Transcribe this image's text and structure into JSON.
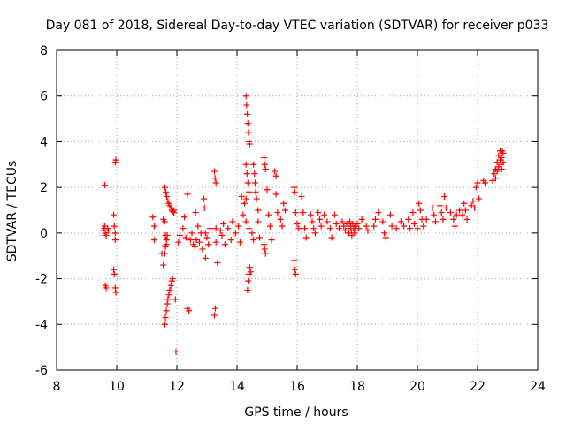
{
  "chart_data": {
    "type": "scatter",
    "title": "Day 081 of 2018, Sidereal Day-to-day VTEC variation (SDTVAR) for receiver p033",
    "xlabel": "GPS time / hours",
    "ylabel": "SDTVAR / TECUs",
    "xlim": [
      8,
      24
    ],
    "ylim": [
      -6,
      8
    ],
    "xticks": [
      8,
      10,
      12,
      14,
      16,
      18,
      20,
      22,
      24
    ],
    "yticks": [
      -6,
      -4,
      -2,
      0,
      2,
      4,
      6,
      8
    ],
    "grid": true,
    "marker": "plus",
    "color": "#ff0000",
    "points": [
      [
        9.55,
        0.1
      ],
      [
        9.58,
        0.2
      ],
      [
        9.6,
        0.3
      ],
      [
        9.62,
        0.0
      ],
      [
        9.65,
        -0.1
      ],
      [
        9.6,
        2.1
      ],
      [
        9.62,
        -2.3
      ],
      [
        9.65,
        -2.4
      ],
      [
        9.7,
        0.2
      ],
      [
        9.72,
        0.1
      ],
      [
        9.9,
        0.8
      ],
      [
        9.92,
        0.3
      ],
      [
        9.95,
        0.0
      ],
      [
        9.95,
        -0.3
      ],
      [
        9.95,
        3.1
      ],
      [
        9.97,
        3.2
      ],
      [
        9.9,
        -1.6
      ],
      [
        9.92,
        -1.8
      ],
      [
        9.95,
        -2.4
      ],
      [
        9.97,
        -2.6
      ],
      [
        11.2,
        0.7
      ],
      [
        11.25,
        0.3
      ],
      [
        11.25,
        -0.3
      ],
      [
        11.55,
        0.6
      ],
      [
        11.6,
        0.5
      ],
      [
        11.62,
        -0.1
      ],
      [
        11.65,
        -0.5
      ],
      [
        11.5,
        -0.9
      ],
      [
        11.55,
        -1.4
      ],
      [
        11.6,
        -0.9
      ],
      [
        11.62,
        -0.6
      ],
      [
        11.65,
        -0.3
      ],
      [
        11.68,
        -0.1
      ],
      [
        11.6,
        2.0
      ],
      [
        11.63,
        1.8
      ],
      [
        11.66,
        1.6
      ],
      [
        11.7,
        1.4
      ],
      [
        11.73,
        1.3
      ],
      [
        11.76,
        1.2
      ],
      [
        11.8,
        1.1
      ],
      [
        11.83,
        1.0
      ],
      [
        11.86,
        0.95
      ],
      [
        11.9,
        0.9
      ],
      [
        11.6,
        -4.0
      ],
      [
        11.62,
        -3.7
      ],
      [
        11.65,
        -3.4
      ],
      [
        11.68,
        -3.1
      ],
      [
        11.7,
        -2.9
      ],
      [
        11.73,
        -2.7
      ],
      [
        11.76,
        -2.5
      ],
      [
        11.8,
        -2.3
      ],
      [
        11.83,
        -2.1
      ],
      [
        11.86,
        -2.0
      ],
      [
        11.95,
        -2.9
      ],
      [
        11.97,
        -5.2
      ],
      [
        11.9,
        1.0
      ],
      [
        12.05,
        -0.4
      ],
      [
        12.1,
        -0.1
      ],
      [
        12.2,
        0.2
      ],
      [
        12.25,
        0.7
      ],
      [
        12.3,
        -0.2
      ],
      [
        12.35,
        1.7
      ],
      [
        12.35,
        -3.3
      ],
      [
        12.4,
        -3.4
      ],
      [
        12.45,
        -0.3
      ],
      [
        12.5,
        0.0
      ],
      [
        12.55,
        -0.5
      ],
      [
        12.6,
        -0.6
      ],
      [
        12.62,
        0.9
      ],
      [
        12.65,
        -0.3
      ],
      [
        12.7,
        0.3
      ],
      [
        12.75,
        -0.4
      ],
      [
        12.8,
        0.0
      ],
      [
        12.85,
        -0.7
      ],
      [
        12.9,
        1.5
      ],
      [
        12.92,
        1.1
      ],
      [
        12.95,
        0.0
      ],
      [
        12.95,
        -1.1
      ],
      [
        13.0,
        -0.2
      ],
      [
        13.05,
        -0.5
      ],
      [
        13.1,
        0.2
      ],
      [
        13.25,
        2.7
      ],
      [
        13.27,
        2.4
      ],
      [
        13.3,
        2.2
      ],
      [
        13.25,
        -3.6
      ],
      [
        13.28,
        -3.3
      ],
      [
        13.3,
        0.2
      ],
      [
        13.35,
        -1.3
      ],
      [
        13.3,
        -0.4
      ],
      [
        13.45,
        0.1
      ],
      [
        13.5,
        -0.1
      ],
      [
        13.55,
        0.4
      ],
      [
        13.6,
        -0.5
      ],
      [
        13.7,
        0.2
      ],
      [
        13.8,
        -0.3
      ],
      [
        13.85,
        0.5
      ],
      [
        13.95,
        0.0
      ],
      [
        14.05,
        0.3
      ],
      [
        14.1,
        -0.4
      ],
      [
        14.3,
        6.0
      ],
      [
        14.32,
        5.6
      ],
      [
        14.34,
        5.2
      ],
      [
        14.36,
        4.8
      ],
      [
        14.38,
        4.4
      ],
      [
        14.4,
        4.0
      ],
      [
        14.42,
        3.9
      ],
      [
        14.3,
        3.0
      ],
      [
        14.33,
        2.6
      ],
      [
        14.36,
        2.2
      ],
      [
        14.4,
        1.8
      ],
      [
        14.3,
        1.5
      ],
      [
        14.35,
        -2.5
      ],
      [
        14.37,
        -2.1
      ],
      [
        14.4,
        -1.8
      ],
      [
        14.42,
        -1.5
      ],
      [
        14.45,
        -1.7
      ],
      [
        14.15,
        1.6
      ],
      [
        14.25,
        1.3
      ],
      [
        14.2,
        0.8
      ],
      [
        14.3,
        0.5
      ],
      [
        14.4,
        0.2
      ],
      [
        14.5,
        0.0
      ],
      [
        14.55,
        -0.3
      ],
      [
        14.55,
        3.0
      ],
      [
        14.58,
        2.6
      ],
      [
        14.6,
        2.2
      ],
      [
        14.62,
        1.8
      ],
      [
        14.65,
        1.5
      ],
      [
        14.7,
        1.0
      ],
      [
        14.7,
        0.5
      ],
      [
        14.75,
        -0.2
      ],
      [
        14.9,
        3.3
      ],
      [
        14.92,
        3.0
      ],
      [
        14.95,
        2.8
      ],
      [
        14.9,
        -0.5
      ],
      [
        14.92,
        -0.7
      ],
      [
        14.95,
        -0.9
      ],
      [
        15.0,
        1.9
      ],
      [
        15.05,
        0.8
      ],
      [
        15.1,
        0.3
      ],
      [
        15.15,
        -0.3
      ],
      [
        15.25,
        2.7
      ],
      [
        15.3,
        2.5
      ],
      [
        15.3,
        1.7
      ],
      [
        15.35,
        0.9
      ],
      [
        15.45,
        0.6
      ],
      [
        15.5,
        0.3
      ],
      [
        15.55,
        1.3
      ],
      [
        15.6,
        1.0
      ],
      [
        15.9,
        2.0
      ],
      [
        15.92,
        1.8
      ],
      [
        15.95,
        0.9
      ],
      [
        15.9,
        -1.2
      ],
      [
        15.92,
        -1.6
      ],
      [
        15.95,
        -1.8
      ],
      [
        16.0,
        0.4
      ],
      [
        16.05,
        0.2
      ],
      [
        16.15,
        1.6
      ],
      [
        16.2,
        0.9
      ],
      [
        16.25,
        0.2
      ],
      [
        16.3,
        -0.2
      ],
      [
        16.45,
        0.8
      ],
      [
        16.5,
        0.5
      ],
      [
        16.55,
        0.2
      ],
      [
        16.6,
        0.0
      ],
      [
        16.7,
        0.9
      ],
      [
        16.75,
        0.6
      ],
      [
        16.8,
        0.3
      ],
      [
        16.9,
        0.8
      ],
      [
        17.0,
        0.5
      ],
      [
        17.1,
        0.2
      ],
      [
        17.15,
        -0.2
      ],
      [
        17.25,
        0.8
      ],
      [
        17.3,
        0.4
      ],
      [
        17.4,
        0.2
      ],
      [
        17.5,
        0.5
      ],
      [
        17.55,
        0.3
      ],
      [
        17.6,
        0.1
      ],
      [
        17.65,
        0.4
      ],
      [
        17.7,
        0.2
      ],
      [
        17.72,
        0.0
      ],
      [
        17.75,
        0.5
      ],
      [
        17.78,
        0.3
      ],
      [
        17.8,
        0.1
      ],
      [
        17.82,
        -0.1
      ],
      [
        17.85,
        0.4
      ],
      [
        17.88,
        0.2
      ],
      [
        17.9,
        0.0
      ],
      [
        17.92,
        0.3
      ],
      [
        17.95,
        0.1
      ],
      [
        18.0,
        0.4
      ],
      [
        18.05,
        0.2
      ],
      [
        18.15,
        0.6
      ],
      [
        18.3,
        0.3
      ],
      [
        18.35,
        0.1
      ],
      [
        18.55,
        0.3
      ],
      [
        18.6,
        0.6
      ],
      [
        18.7,
        0.9
      ],
      [
        18.85,
        0.5
      ],
      [
        18.9,
        0.0
      ],
      [
        18.95,
        -0.2
      ],
      [
        19.1,
        0.8
      ],
      [
        19.15,
        0.3
      ],
      [
        19.3,
        0.2
      ],
      [
        19.45,
        0.5
      ],
      [
        19.55,
        0.3
      ],
      [
        19.7,
        0.6
      ],
      [
        19.75,
        0.2
      ],
      [
        19.85,
        0.9
      ],
      [
        19.9,
        0.4
      ],
      [
        20.0,
        0.2
      ],
      [
        20.05,
        1.3
      ],
      [
        20.1,
        1.0
      ],
      [
        20.15,
        0.6
      ],
      [
        20.2,
        0.3
      ],
      [
        20.3,
        0.6
      ],
      [
        20.5,
        1.1
      ],
      [
        20.55,
        0.8
      ],
      [
        20.6,
        0.5
      ],
      [
        20.75,
        1.2
      ],
      [
        20.8,
        0.9
      ],
      [
        20.85,
        0.6
      ],
      [
        20.9,
        1.6
      ],
      [
        20.95,
        1.1
      ],
      [
        21.1,
        0.9
      ],
      [
        21.2,
        0.6
      ],
      [
        21.25,
        0.3
      ],
      [
        21.3,
        0.8
      ],
      [
        21.4,
        1.0
      ],
      [
        21.5,
        0.8
      ],
      [
        21.55,
        1.3
      ],
      [
        21.6,
        1.0
      ],
      [
        21.65,
        0.6
      ],
      [
        21.8,
        1.2
      ],
      [
        21.85,
        1.4
      ],
      [
        21.9,
        1.1
      ],
      [
        21.95,
        2.0
      ],
      [
        22.0,
        2.2
      ],
      [
        22.05,
        1.5
      ],
      [
        22.2,
        2.3
      ],
      [
        22.25,
        2.2
      ],
      [
        22.5,
        2.3
      ],
      [
        22.55,
        2.6
      ],
      [
        22.6,
        2.8
      ],
      [
        22.65,
        3.1
      ],
      [
        22.7,
        3.4
      ],
      [
        22.75,
        3.6
      ],
      [
        22.78,
        3.0
      ],
      [
        22.8,
        3.3
      ],
      [
        22.82,
        3.6
      ],
      [
        22.85,
        3.5
      ],
      [
        22.6,
        2.4
      ],
      [
        22.65,
        2.7
      ],
      [
        22.7,
        2.9
      ],
      [
        22.75,
        3.2
      ],
      [
        22.8,
        2.8
      ],
      [
        22.85,
        3.1
      ]
    ]
  }
}
